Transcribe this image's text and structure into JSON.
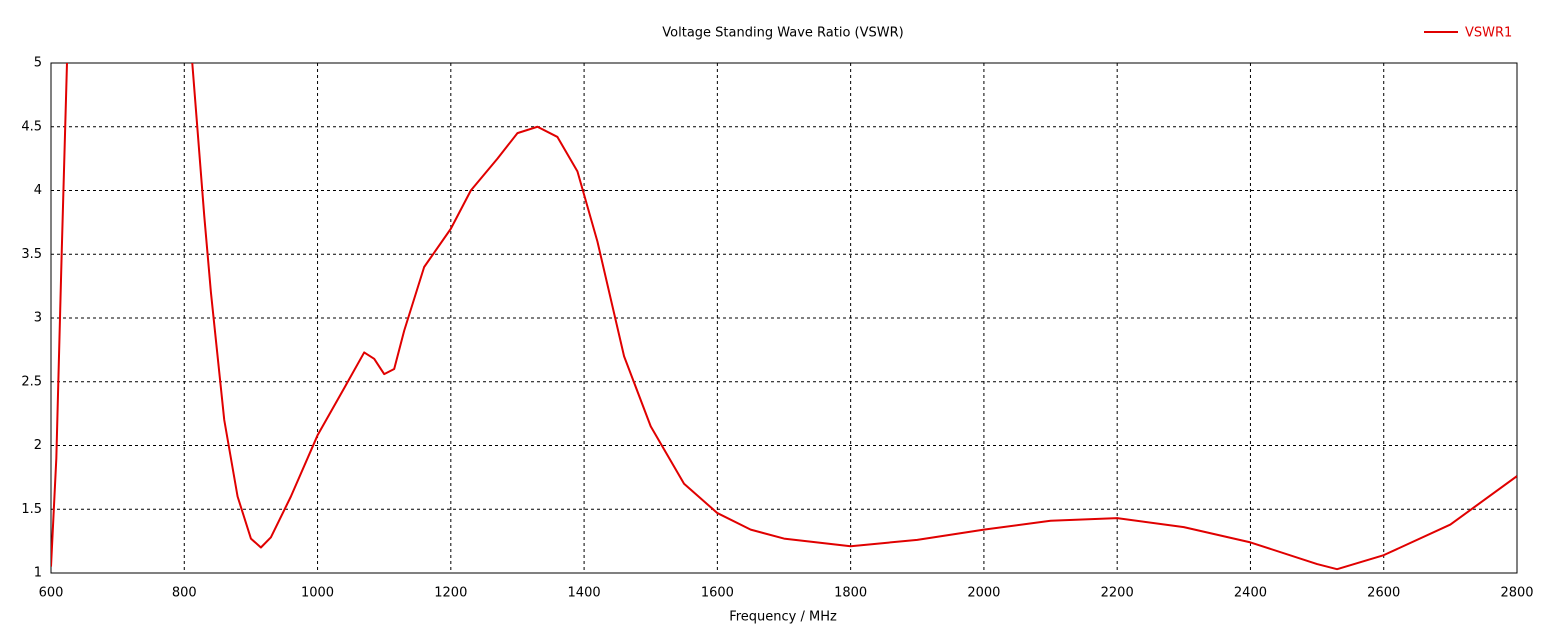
{
  "chart_data": {
    "type": "line",
    "title": "Voltage Standing Wave Ratio (VSWR)",
    "x_label": "Frequency / MHz",
    "x": [
      600,
      608,
      616,
      624,
      700,
      812,
      830,
      840,
      860,
      880,
      900,
      915,
      930,
      960,
      1000,
      1040,
      1070,
      1085,
      1100,
      1115,
      1130,
      1160,
      1200,
      1230,
      1270,
      1300,
      1330,
      1360,
      1390,
      1420,
      1460,
      1500,
      1550,
      1600,
      1650,
      1700,
      1800,
      1900,
      2000,
      2100,
      2200,
      2300,
      2400,
      2500,
      2530,
      2600,
      2700,
      2800
    ],
    "series": [
      {
        "name": "VSWR1",
        "color": "#e00000",
        "values": [
          1.05,
          1.9,
          3.5,
          5,
          null,
          5,
          3.8,
          3.2,
          2.2,
          1.6,
          1.27,
          1.2,
          1.28,
          1.6,
          2.08,
          2.45,
          2.73,
          2.68,
          2.56,
          2.6,
          2.9,
          3.4,
          3.7,
          4.0,
          4.25,
          4.45,
          4.5,
          4.42,
          4.15,
          3.6,
          2.7,
          2.15,
          1.7,
          1.47,
          1.34,
          1.27,
          1.21,
          1.26,
          1.34,
          1.41,
          1.43,
          1.36,
          1.24,
          1.07,
          1.03,
          1.14,
          1.38,
          1.76
        ]
      }
    ],
    "xlim": [
      600,
      2800
    ],
    "xticks": [
      600,
      800,
      1000,
      1200,
      1400,
      1600,
      1800,
      2000,
      2200,
      2400,
      2600,
      2800
    ],
    "ylim": [
      1,
      5
    ],
    "yticks": [
      1,
      1.5,
      2,
      2.5,
      3,
      3.5,
      4,
      4.5,
      5
    ],
    "grid": true,
    "legend": "top-right"
  }
}
